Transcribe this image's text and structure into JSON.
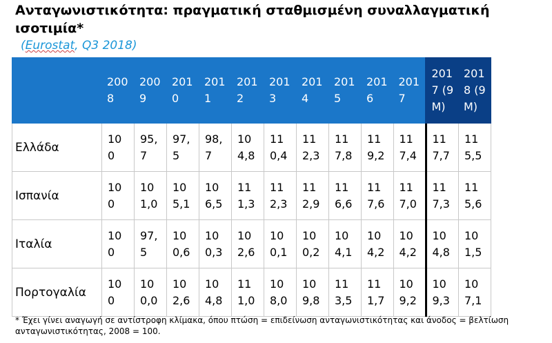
{
  "title": "Ανταγωνιστικότητα: πραγματική σταθμισμένη συναλλαγματική ισοτιμία*",
  "subtitle_open": "(",
  "subtitle_source": "Eurostat",
  "subtitle_rest": ", Q3 2018)",
  "table": {
    "columns": [
      "2008",
      "2009",
      "2010",
      "2011",
      "2012",
      "2013",
      "2014",
      "2015",
      "2016",
      "2017",
      "2017 (9 M)",
      "2018 (9 M)"
    ],
    "rows": [
      {
        "country": "Ελλάδα",
        "values": [
          "100",
          "95,7",
          "97,5",
          "98,7",
          "104,8",
          "110,4",
          "112,3",
          "117,8",
          "119,2",
          "117,4",
          "117,7",
          "115,5"
        ]
      },
      {
        "country": "Ισπανία",
        "values": [
          "100",
          "101,0",
          "105,1",
          "106,5",
          "111,3",
          "112,3",
          "112,9",
          "116,6",
          "117,6",
          "117,0",
          "117,3",
          "115,6"
        ]
      },
      {
        "country": "Ιταλία",
        "values": [
          "100",
          "97,5",
          "100,6",
          "100,3",
          "102,6",
          "100,1",
          "100,2",
          "104,1",
          "104,2",
          "104,2",
          "104,8",
          "101,5"
        ]
      },
      {
        "country": "Πορτογαλία",
        "values": [
          "100",
          "100,0",
          "102,6",
          "104,8",
          "111,0",
          "108,0",
          "109,8",
          "113,5",
          "111,7",
          "109,2",
          "109,3",
          "107,1"
        ]
      }
    ]
  },
  "footnote": "* Έχει γίνει αναγωγή σε αντίστροφη κλίμακα, όπου πτώση = επιδείνωση ανταγωνιστικότητας και άνοδος = βελτίωση ανταγωνιστικότητας, 2008 = 100.",
  "colors": {
    "header": "#1b77c9",
    "header_highlight": "#0a3f86",
    "subtitle": "#1a96d8"
  }
}
